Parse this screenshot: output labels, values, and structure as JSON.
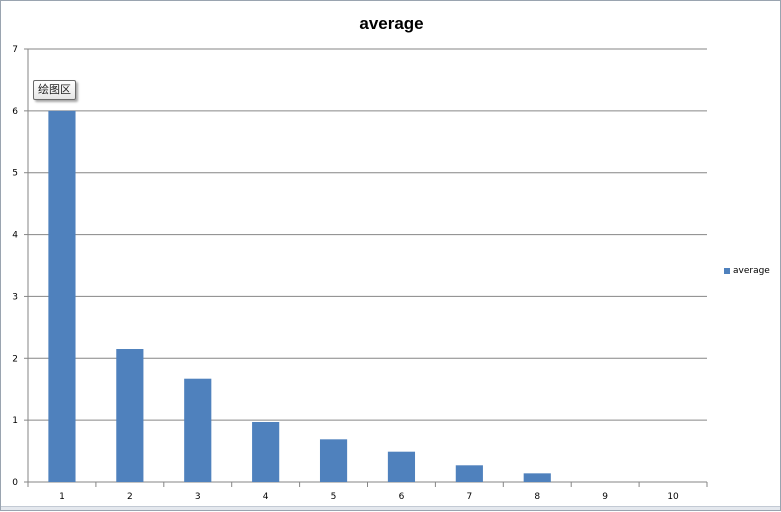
{
  "chart_data": {
    "type": "bar",
    "title": "average",
    "xlabel": "",
    "ylabel": "",
    "categories": [
      "1",
      "2",
      "3",
      "4",
      "5",
      "6",
      "7",
      "8",
      "9",
      "10"
    ],
    "series": [
      {
        "name": "average",
        "color": "#4f81bd",
        "values": [
          6.0,
          2.15,
          1.67,
          0.97,
          0.69,
          0.49,
          0.27,
          0.14,
          0,
          0
        ]
      }
    ],
    "ylim": [
      0,
      7
    ],
    "yticks": [
      "0",
      "1",
      "2",
      "3",
      "4",
      "5",
      "6",
      "7"
    ],
    "grid": true,
    "legend_position": "right"
  },
  "tooltip": {
    "label": "绘图区"
  }
}
